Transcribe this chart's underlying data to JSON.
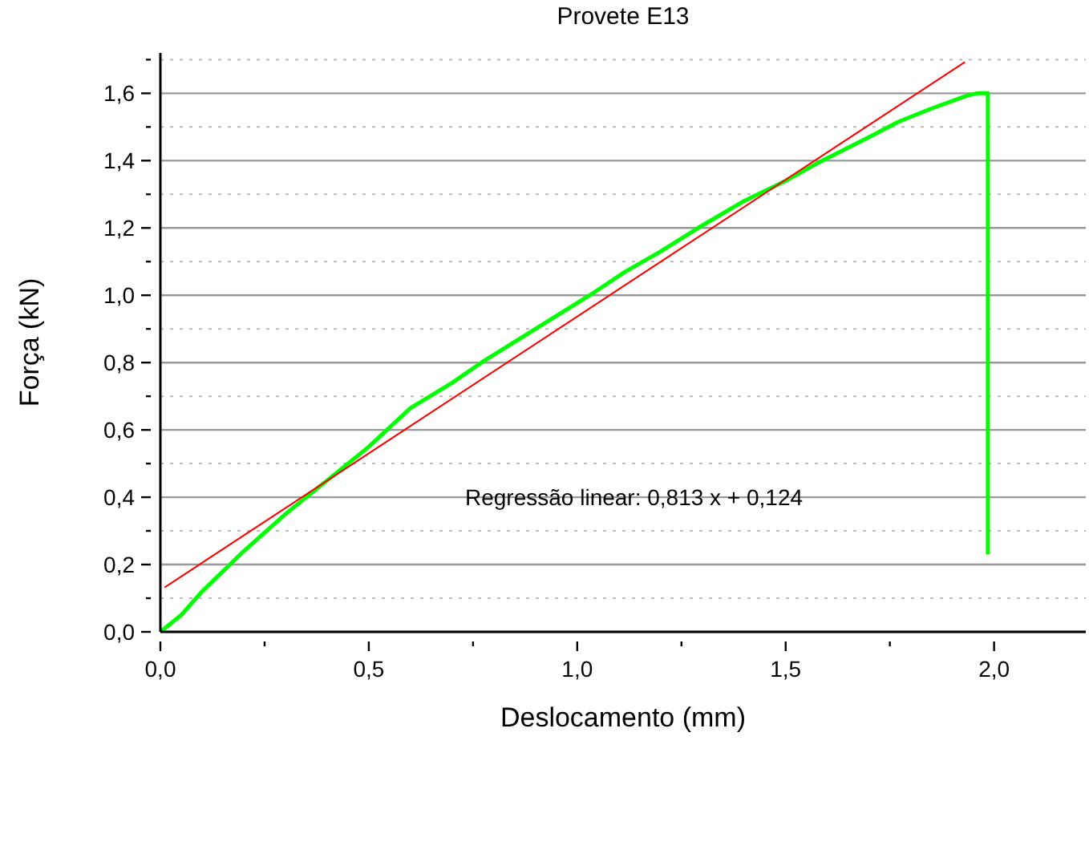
{
  "chart_data": {
    "type": "line",
    "title": "Provete E13",
    "xlabel": "Deslocamento (mm)",
    "ylabel": "Força (kN)",
    "annotations": [
      "Regressão linear: 0,813 x + 0,124"
    ],
    "xlim": [
      0,
      2.22
    ],
    "ylim": [
      0,
      1.72
    ],
    "xticks": [
      {
        "value": 0,
        "label": "0,0"
      },
      {
        "value": 0.25,
        "label": null
      },
      {
        "value": 0.5,
        "label": "0,5"
      },
      {
        "value": 0.75,
        "label": null
      },
      {
        "value": 1.0,
        "label": "1,0"
      },
      {
        "value": 1.25,
        "label": null
      },
      {
        "value": 1.5,
        "label": "1,5"
      },
      {
        "value": 1.75,
        "label": null
      },
      {
        "value": 2.0,
        "label": "2,0"
      }
    ],
    "yticks": [
      {
        "value": 0,
        "label": "0,0"
      },
      {
        "value": 0.1,
        "label": null
      },
      {
        "value": 0.2,
        "label": "0,2"
      },
      {
        "value": 0.3,
        "label": null
      },
      {
        "value": 0.4,
        "label": "0,4"
      },
      {
        "value": 0.5,
        "label": null
      },
      {
        "value": 0.6,
        "label": "0,6"
      },
      {
        "value": 0.7,
        "label": null
      },
      {
        "value": 0.8,
        "label": "0,8"
      },
      {
        "value": 0.9,
        "label": null
      },
      {
        "value": 1.0,
        "label": "1,0"
      },
      {
        "value": 1.1,
        "label": null
      },
      {
        "value": 1.2,
        "label": "1,2"
      },
      {
        "value": 1.3,
        "label": null
      },
      {
        "value": 1.4,
        "label": "1,4"
      },
      {
        "value": 1.5,
        "label": null
      },
      {
        "value": 1.6,
        "label": "1,6"
      },
      {
        "value": 1.7,
        "label": null
      }
    ],
    "grid": "y",
    "marker": "none",
    "legend": false,
    "series": [
      {
        "color": "#00ff00",
        "x": [
          0,
          0.05,
          0.1,
          0.2,
          0.3,
          0.4,
          0.5,
          0.6,
          0.7,
          0.77,
          0.9,
          1.03,
          1.115,
          1.2,
          1.29,
          1.4,
          1.5,
          1.58,
          1.7,
          1.77,
          1.85,
          1.94,
          1.96,
          1.98,
          1.985,
          1.985
        ],
        "values": [
          0,
          0.05,
          0.12,
          0.24,
          0.35,
          0.45,
          0.55,
          0.665,
          0.74,
          0.8,
          0.9,
          1.0,
          1.07,
          1.13,
          1.2,
          1.28,
          1.34,
          1.395,
          1.47,
          1.515,
          1.555,
          1.595,
          1.6,
          1.6,
          1.6,
          0.23
        ]
      },
      {
        "color": "#ff0000",
        "x": [
          0.01,
          1.93
        ],
        "values": [
          0.132,
          1.693
        ]
      }
    ]
  }
}
